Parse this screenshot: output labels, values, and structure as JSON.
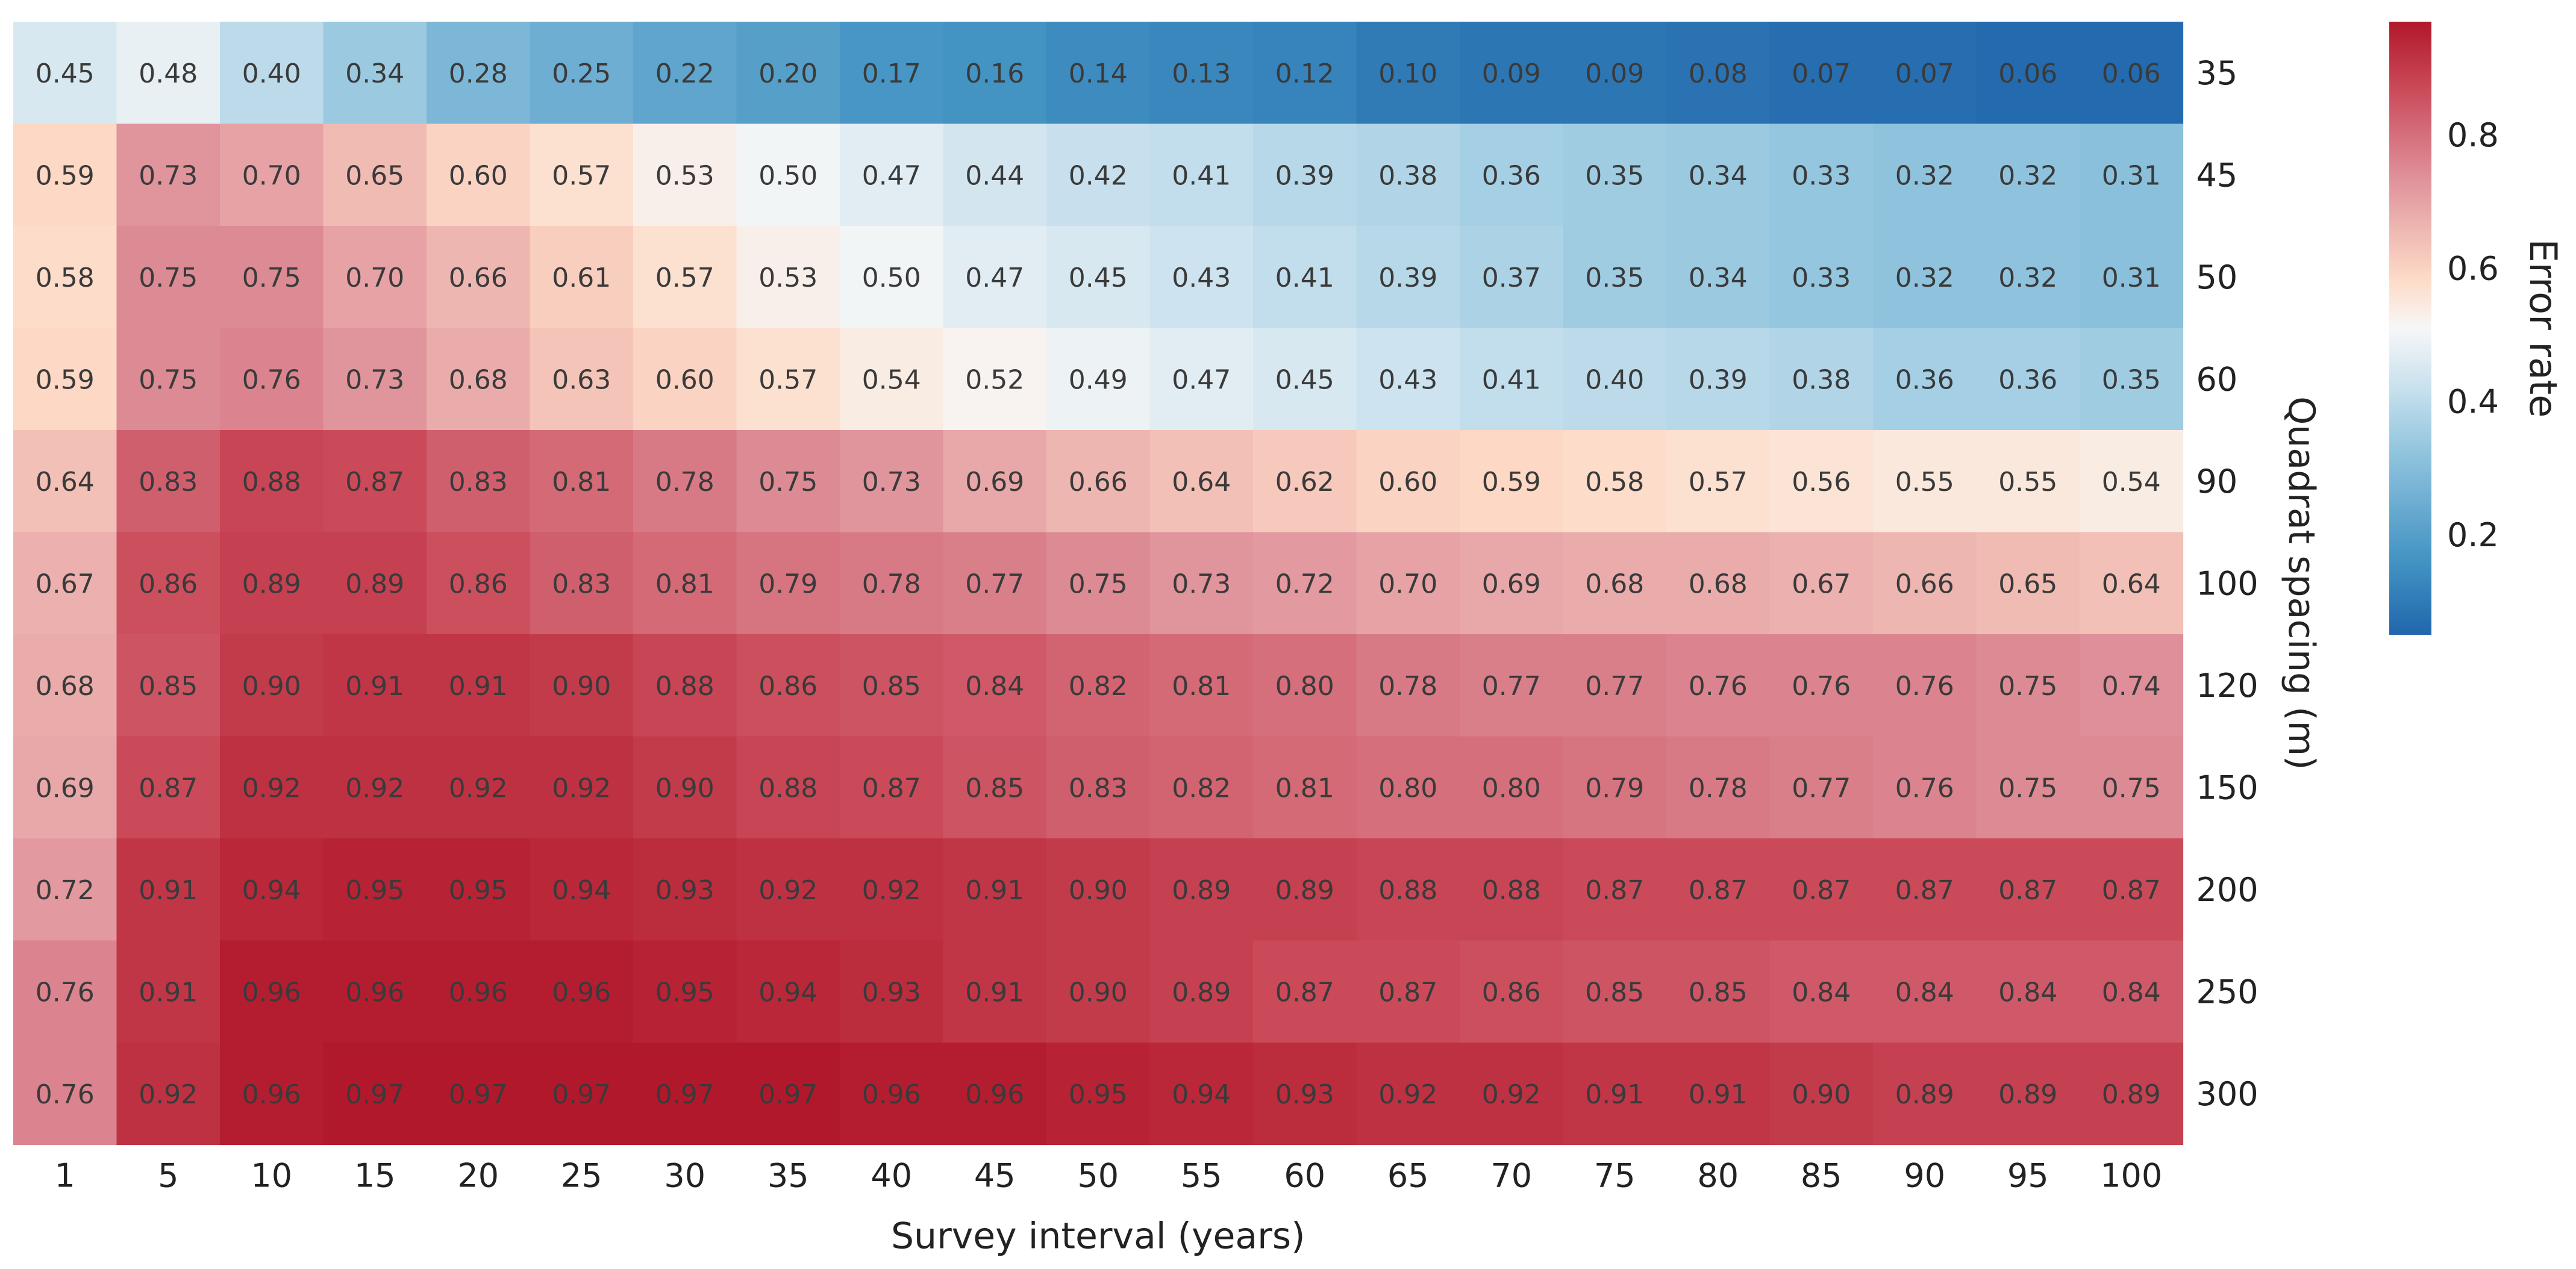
{
  "chart_data": {
    "type": "heatmap",
    "title": "",
    "xlabel": "Survey interval (years)",
    "ylabel": "Quadrat spacing (m)",
    "x": [
      "1",
      "5",
      "10",
      "15",
      "20",
      "25",
      "30",
      "35",
      "40",
      "45",
      "50",
      "55",
      "60",
      "65",
      "70",
      "75",
      "80",
      "85",
      "90",
      "95",
      "100"
    ],
    "y": [
      "35",
      "45",
      "50",
      "60",
      "90",
      "100",
      "120",
      "150",
      "200",
      "250",
      "300"
    ],
    "values": [
      [
        0.45,
        0.48,
        0.4,
        0.34,
        0.28,
        0.25,
        0.22,
        0.2,
        0.17,
        0.16,
        0.14,
        0.13,
        0.12,
        0.1,
        0.09,
        0.09,
        0.08,
        0.07,
        0.07,
        0.06,
        0.06
      ],
      [
        0.59,
        0.73,
        0.7,
        0.65,
        0.6,
        0.57,
        0.53,
        0.5,
        0.47,
        0.44,
        0.42,
        0.41,
        0.39,
        0.38,
        0.36,
        0.35,
        0.34,
        0.33,
        0.32,
        0.32,
        0.31
      ],
      [
        0.58,
        0.75,
        0.75,
        0.7,
        0.66,
        0.61,
        0.57,
        0.53,
        0.5,
        0.47,
        0.45,
        0.43,
        0.41,
        0.39,
        0.37,
        0.35,
        0.34,
        0.33,
        0.32,
        0.32,
        0.31
      ],
      [
        0.59,
        0.75,
        0.76,
        0.73,
        0.68,
        0.63,
        0.6,
        0.57,
        0.54,
        0.52,
        0.49,
        0.47,
        0.45,
        0.43,
        0.41,
        0.4,
        0.39,
        0.38,
        0.36,
        0.36,
        0.35
      ],
      [
        0.64,
        0.83,
        0.88,
        0.87,
        0.83,
        0.81,
        0.78,
        0.75,
        0.73,
        0.69,
        0.66,
        0.64,
        0.62,
        0.6,
        0.59,
        0.58,
        0.57,
        0.56,
        0.55,
        0.55,
        0.54
      ],
      [
        0.67,
        0.86,
        0.89,
        0.89,
        0.86,
        0.83,
        0.81,
        0.79,
        0.78,
        0.77,
        0.75,
        0.73,
        0.72,
        0.7,
        0.69,
        0.68,
        0.68,
        0.67,
        0.66,
        0.65,
        0.64
      ],
      [
        0.68,
        0.85,
        0.9,
        0.91,
        0.91,
        0.9,
        0.88,
        0.86,
        0.85,
        0.84,
        0.82,
        0.81,
        0.8,
        0.78,
        0.77,
        0.77,
        0.76,
        0.76,
        0.76,
        0.75,
        0.74
      ],
      [
        0.69,
        0.87,
        0.92,
        0.92,
        0.92,
        0.92,
        0.9,
        0.88,
        0.87,
        0.85,
        0.83,
        0.82,
        0.81,
        0.8,
        0.8,
        0.79,
        0.78,
        0.77,
        0.76,
        0.75,
        0.75
      ],
      [
        0.72,
        0.91,
        0.94,
        0.95,
        0.95,
        0.94,
        0.93,
        0.92,
        0.92,
        0.91,
        0.9,
        0.89,
        0.89,
        0.88,
        0.88,
        0.87,
        0.87,
        0.87,
        0.87,
        0.87,
        0.87
      ],
      [
        0.76,
        0.91,
        0.96,
        0.96,
        0.96,
        0.96,
        0.95,
        0.94,
        0.93,
        0.91,
        0.9,
        0.89,
        0.87,
        0.87,
        0.86,
        0.85,
        0.85,
        0.84,
        0.84,
        0.84,
        0.84
      ],
      [
        0.76,
        0.92,
        0.96,
        0.97,
        0.97,
        0.97,
        0.97,
        0.97,
        0.96,
        0.96,
        0.95,
        0.94,
        0.93,
        0.92,
        0.92,
        0.91,
        0.91,
        0.9,
        0.89,
        0.89,
        0.89
      ]
    ],
    "colorbar": {
      "label": "Error rate",
      "range": [
        0.05,
        0.97
      ],
      "ticks": [
        "0.2",
        "0.4",
        "0.6",
        "0.8"
      ],
      "tick_values": [
        0.2,
        0.4,
        0.6,
        0.8
      ],
      "colormap": "RdBu_r",
      "low_color": "#2166ac",
      "mid_color": "#f7f7f7",
      "high_color": "#b2182b"
    },
    "value_format": "0.00",
    "grid": false,
    "legend": "colorbar-right"
  }
}
